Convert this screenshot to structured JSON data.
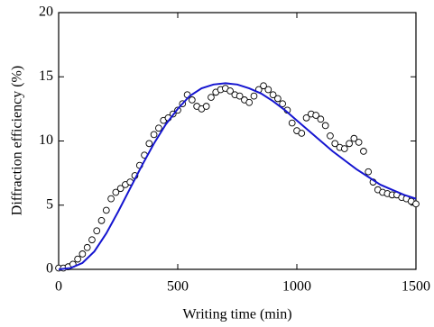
{
  "chart_data": {
    "type": "scatter",
    "xlabel": "Writing time (min)",
    "ylabel": "Diffraction efficiency (%)",
    "xlim": [
      0,
      1500
    ],
    "xticks": [
      0,
      500,
      1000,
      1500
    ],
    "ylim": [
      0,
      20
    ],
    "yticks": [
      0,
      5,
      10,
      15,
      20
    ],
    "series": [
      {
        "type": "scatter",
        "color": "#000000",
        "x": [
          0,
          20,
          40,
          60,
          80,
          100,
          120,
          140,
          160,
          180,
          200,
          220,
          240,
          260,
          280,
          300,
          320,
          340,
          360,
          380,
          400,
          420,
          440,
          460,
          480,
          500,
          520,
          540,
          560,
          580,
          600,
          620,
          640,
          660,
          680,
          700,
          720,
          740,
          760,
          780,
          800,
          820,
          840,
          860,
          880,
          900,
          920,
          940,
          960,
          980,
          1000,
          1020,
          1040,
          1060,
          1080,
          1100,
          1120,
          1140,
          1160,
          1180,
          1200,
          1220,
          1240,
          1260,
          1280,
          1300,
          1320,
          1340,
          1360,
          1380,
          1400,
          1420,
          1440,
          1460,
          1480,
          1500
        ],
        "values": [
          0.1,
          0.1,
          0.2,
          0.4,
          0.8,
          1.2,
          1.7,
          2.3,
          3.0,
          3.8,
          4.6,
          5.5,
          6.0,
          6.3,
          6.6,
          6.8,
          7.3,
          8.1,
          8.9,
          9.8,
          10.5,
          11.0,
          11.6,
          11.8,
          12.1,
          12.4,
          12.9,
          13.6,
          13.2,
          12.7,
          12.5,
          12.7,
          13.4,
          13.8,
          14.0,
          14.1,
          13.9,
          13.6,
          13.5,
          13.2,
          13.0,
          13.5,
          14.0,
          14.3,
          14.0,
          13.6,
          13.3,
          12.9,
          12.4,
          11.4,
          10.8,
          10.6,
          11.8,
          12.1,
          12.0,
          11.7,
          11.2,
          10.4,
          9.8,
          9.5,
          9.4,
          9.8,
          10.2,
          9.9,
          9.2,
          7.6,
          6.8,
          6.2,
          6.0,
          5.9,
          5.8,
          5.8,
          5.6,
          5.5,
          5.3,
          5.1
        ]
      },
      {
        "type": "line",
        "color": "#1515d0",
        "x": [
          0,
          50,
          100,
          150,
          200,
          250,
          300,
          350,
          400,
          450,
          500,
          550,
          600,
          650,
          700,
          750,
          800,
          850,
          900,
          950,
          1000,
          1050,
          1100,
          1150,
          1200,
          1250,
          1300,
          1350,
          1400,
          1450,
          1500
        ],
        "values": [
          0,
          0.1,
          0.5,
          1.4,
          2.8,
          4.5,
          6.3,
          8.1,
          9.8,
          11.3,
          12.5,
          13.5,
          14.1,
          14.4,
          14.5,
          14.4,
          14.1,
          13.7,
          13.1,
          12.4,
          11.6,
          10.8,
          10.0,
          9.2,
          8.5,
          7.8,
          7.2,
          6.6,
          6.2,
          5.8,
          5.5
        ]
      }
    ]
  }
}
